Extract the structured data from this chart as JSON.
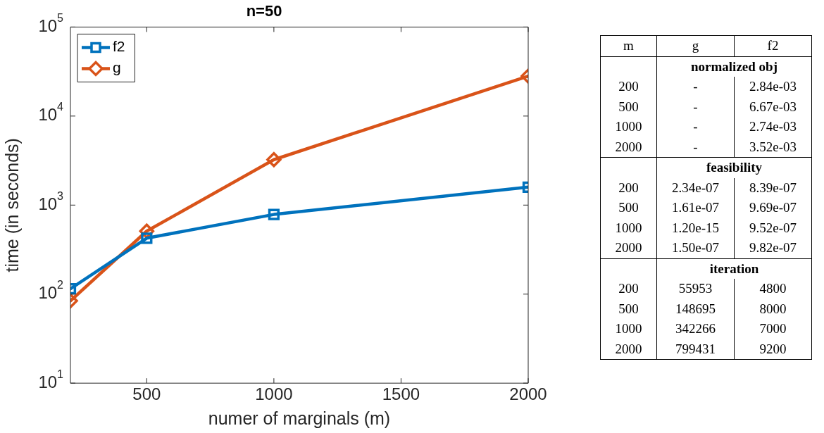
{
  "chart_data": [
    {
      "type": "line",
      "title": "n=50",
      "xlabel": "numer of marginals (m)",
      "ylabel": "time (in seconds)",
      "log": "y",
      "grid": false,
      "legend": "top left",
      "line_style": "solid",
      "xlim": [
        200,
        2000
      ],
      "xticks": [
        500,
        1000,
        1500,
        2000
      ],
      "ylim": [
        10,
        100000
      ],
      "yticks": [
        {
          "value": 10,
          "label": "10$^{1}$"
        },
        {
          "value": 100,
          "label": "10$^{2}$"
        },
        {
          "value": 1000,
          "label": "10$^{3}$"
        },
        {
          "value": 10000,
          "label": "10$^{4}$"
        },
        {
          "value": 100000,
          "label": "10$^{5}$"
        }
      ],
      "series": [
        {
          "name": "f2",
          "color": "#0072bd",
          "marker": "square",
          "x": [
            200,
            500,
            1000,
            2000
          ],
          "values": [
            115,
            425,
            785,
            1590
          ]
        },
        {
          "name": "g",
          "color": "#d95319",
          "marker": "diamond",
          "x": [
            200,
            500,
            1000,
            2000
          ],
          "values": [
            84,
            510,
            3240,
            28100
          ]
        }
      ]
    },
    {
      "type": "other",
      "categories": [
        "m",
        "g",
        "f2"
      ],
      "y_categories": [
        null,
        "200",
        "500",
        "1000",
        "2000",
        null,
        "200",
        "500",
        "1000",
        "2000",
        null,
        "200",
        "500",
        "1000",
        "2000"
      ],
      "cell_labels": [
        [
          "normalized obj",
          null
        ],
        [
          "-",
          "2.84e-03"
        ],
        [
          "-",
          "6.67e-03"
        ],
        [
          "-",
          "2.74e-03"
        ],
        [
          "-",
          "3.52e-03"
        ],
        [
          "feasibility",
          null
        ],
        [
          "2.34e-07",
          "8.39e-07"
        ],
        [
          "1.61e-07",
          "9.69e-07"
        ],
        [
          "1.20e-15",
          "9.52e-07"
        ],
        [
          "1.50e-07",
          "9.82e-07"
        ],
        [
          "iteration",
          null
        ],
        [
          "55953",
          "4800"
        ],
        [
          "148695",
          "8000"
        ],
        [
          "342266",
          "7000"
        ],
        [
          "799431",
          "9200"
        ]
      ]
    }
  ]
}
